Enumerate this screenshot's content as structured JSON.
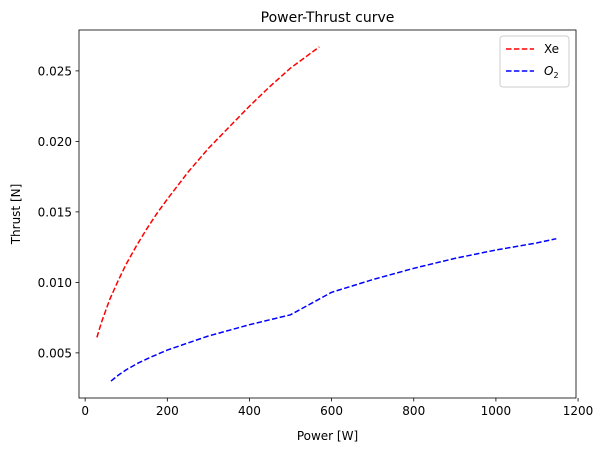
{
  "chart_data": {
    "type": "line",
    "title": "Power-Thrust curve",
    "xlabel": "Power [W]",
    "ylabel": "Thrust [N]",
    "xlim": [
      -15,
      1195
    ],
    "ylim": [
      0.0018,
      0.0279
    ],
    "xticks": [
      0,
      200,
      400,
      600,
      800,
      1000,
      1200
    ],
    "xtick_labels": [
      "0",
      "200",
      "400",
      "600",
      "800",
      "1000",
      "1200"
    ],
    "yticks": [
      0.005,
      0.01,
      0.015,
      0.02,
      0.025
    ],
    "ytick_labels": [
      "0.005",
      "0.010",
      "0.015",
      "0.020",
      "0.025"
    ],
    "grid": false,
    "legend_position": "top-right",
    "series": [
      {
        "name": "Xe",
        "legend_label": "Xe",
        "color": "#ff0000",
        "line_style": "dashed",
        "x": [
          28.5,
          40,
          60,
          80,
          100,
          125,
          150,
          175,
          200,
          250,
          300,
          350,
          400,
          450,
          500,
          570
        ],
        "y": [
          0.0061,
          0.0072,
          0.0088,
          0.0101,
          0.0113,
          0.0126,
          0.0138,
          0.0149,
          0.0159,
          0.0178,
          0.0195,
          0.021,
          0.0225,
          0.0239,
          0.0252,
          0.0267
        ]
      },
      {
        "name": "O2",
        "legend_label": "O",
        "legend_subscript": "2",
        "color": "#0000ff",
        "line_style": "dashed",
        "x": [
          63,
          80,
          100,
          130,
          160,
          200,
          250,
          300,
          400,
          500,
          600,
          700,
          800,
          900,
          1000,
          1100,
          1147
        ],
        "y": [
          0.003,
          0.0034,
          0.0038,
          0.0043,
          0.0047,
          0.0052,
          0.0057,
          0.0062,
          0.007,
          0.0077,
          0.0093,
          0.0102,
          0.011,
          0.0117,
          0.0123,
          0.0128,
          0.0131
        ]
      }
    ]
  }
}
